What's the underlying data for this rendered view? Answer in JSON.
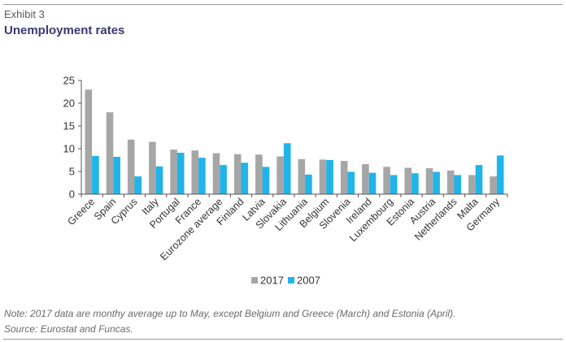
{
  "header": {
    "exhibit": "Exhibit 3",
    "title": "Unemployment rates"
  },
  "notes": {
    "note": "Note: 2017 data are monthy average up to May, except Belgium and Greece (March) and Estonia (April).",
    "source": "Source: Eurostat and Funcas."
  },
  "colors": {
    "series_2017": "#a6a6a6",
    "series_2007": "#1fb4ea"
  },
  "chart_data": {
    "type": "bar",
    "title": "Unemployment rates",
    "xlabel": "",
    "ylabel": "",
    "ylim": [
      0,
      25
    ],
    "yticks": [
      0,
      5,
      10,
      15,
      20,
      25
    ],
    "grid": false,
    "legend_position": "bottom",
    "categories": [
      "Greece",
      "Spain",
      "Cyprus",
      "Italy",
      "Portugal",
      "France",
      "Eurozone average",
      "Finland",
      "Latvia",
      "Slovakia",
      "Lithuania",
      "Belgium",
      "Slovenia",
      "Ireland",
      "Luxembourg",
      "Estonia",
      "Austria",
      "Netherlands",
      "Malta",
      "Germany"
    ],
    "series": [
      {
        "name": "2017",
        "values": [
          23.0,
          18.0,
          12.0,
          11.5,
          9.8,
          9.6,
          9.0,
          8.8,
          8.7,
          8.3,
          7.7,
          7.6,
          7.3,
          6.6,
          6.0,
          5.8,
          5.7,
          5.2,
          4.2,
          3.9
        ]
      },
      {
        "name": "2007",
        "values": [
          8.4,
          8.2,
          3.9,
          6.1,
          9.1,
          8.0,
          6.4,
          6.9,
          6.0,
          11.2,
          4.3,
          7.5,
          4.9,
          4.7,
          4.2,
          4.6,
          4.9,
          4.2,
          6.4,
          8.5
        ]
      }
    ]
  }
}
